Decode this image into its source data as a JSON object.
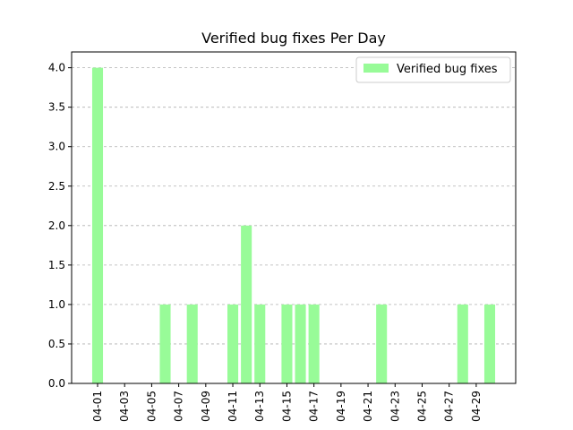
{
  "chart_data": {
    "type": "bar",
    "title": "Verified bug fixes Per Day",
    "xlabel": "",
    "ylabel": "",
    "categories": [
      "04-01",
      "04-02",
      "04-03",
      "04-04",
      "04-05",
      "04-06",
      "04-07",
      "04-08",
      "04-09",
      "04-10",
      "04-11",
      "04-12",
      "04-13",
      "04-14",
      "04-15",
      "04-16",
      "04-17",
      "04-18",
      "04-19",
      "04-20",
      "04-21",
      "04-22",
      "04-23",
      "04-24",
      "04-25",
      "04-26",
      "04-27",
      "04-28",
      "04-29",
      "04-30"
    ],
    "x_tick_labels": [
      "04-01",
      "04-03",
      "04-05",
      "04-07",
      "04-09",
      "04-11",
      "04-13",
      "04-15",
      "04-17",
      "04-19",
      "04-21",
      "04-23",
      "04-25",
      "04-27",
      "04-29"
    ],
    "series": [
      {
        "name": "Verified bug fixes",
        "color": "#98fb98",
        "values": [
          4,
          0,
          0,
          0,
          0,
          1,
          0,
          1,
          0,
          0,
          1,
          2,
          1,
          0,
          1,
          1,
          1,
          0,
          0,
          0,
          0,
          1,
          0,
          0,
          0,
          0,
          0,
          1,
          0,
          1
        ]
      }
    ],
    "ylim": [
      0,
      4.2
    ],
    "y_ticks": [
      "0.0",
      "0.5",
      "1.0",
      "1.5",
      "2.0",
      "2.5",
      "3.0",
      "3.5",
      "4.0"
    ],
    "grid": "y-dashed",
    "legend_position": "upper-right"
  }
}
